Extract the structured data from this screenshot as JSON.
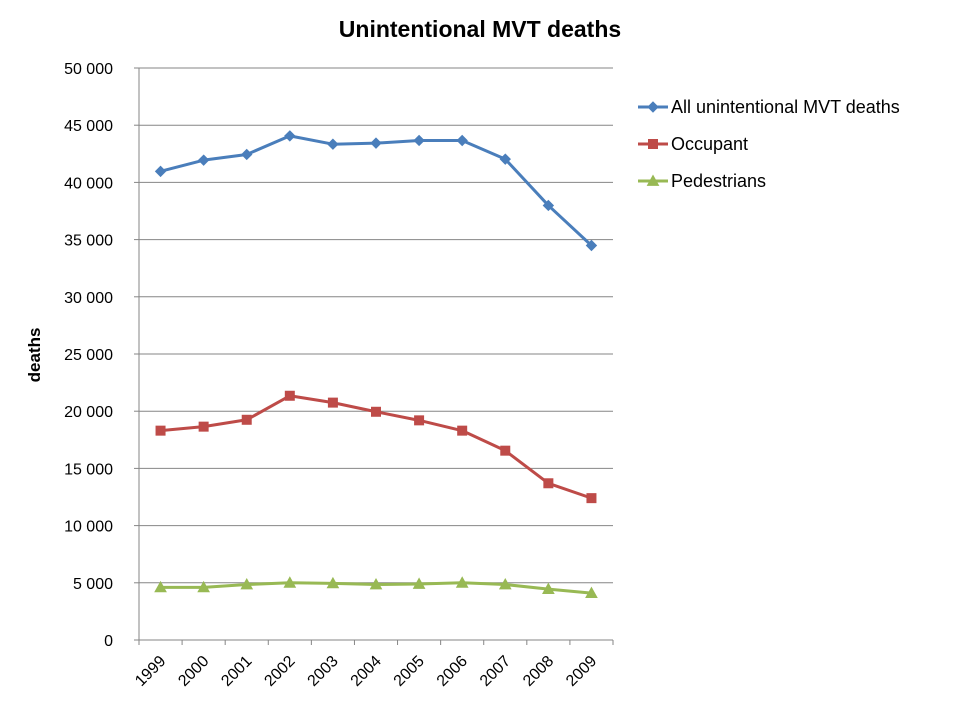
{
  "chart_data": {
    "type": "line",
    "title": "Unintentional MVT deaths",
    "xlabel": "",
    "ylabel": "deaths",
    "ylim": [
      0,
      50000
    ],
    "y_ticks": [
      0,
      5000,
      10000,
      15000,
      20000,
      25000,
      30000,
      35000,
      40000,
      45000,
      50000
    ],
    "y_tick_labels": [
      "0",
      "5 000",
      "10 000",
      "15 000",
      "20 000",
      "25 000",
      "30 000",
      "35 000",
      "40 000",
      "45 000",
      "50 000"
    ],
    "categories": [
      "1999",
      "2000",
      "2001",
      "2002",
      "2003",
      "2004",
      "2005",
      "2006",
      "2007",
      "2008",
      "2009"
    ],
    "grid": true,
    "legend_position": "right",
    "series": [
      {
        "name": "All unintentional MVT deaths",
        "color": "#4a7ebb",
        "marker": "diamond",
        "values": [
          40965,
          41945,
          42443,
          44065,
          43340,
          43432,
          43667,
          43664,
          42031,
          37985,
          34485
        ]
      },
      {
        "name": "Occupant",
        "color": "#be4b48",
        "marker": "square",
        "values": [
          18300,
          18650,
          19250,
          21350,
          20750,
          19950,
          19200,
          18300,
          16550,
          13700,
          12400
        ]
      },
      {
        "name": "Pedestrians",
        "color": "#98b954",
        "marker": "triangle",
        "values": [
          4600,
          4600,
          4850,
          5000,
          4950,
          4850,
          4900,
          5000,
          4850,
          4450,
          4100
        ]
      }
    ]
  }
}
